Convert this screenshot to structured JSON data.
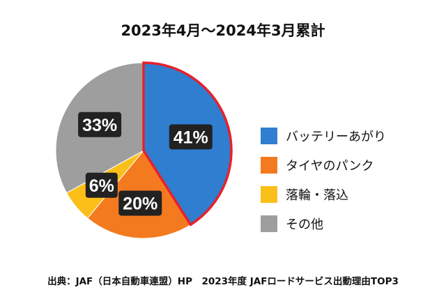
{
  "chart_data": {
    "type": "pie",
    "title": "2023年4月～2024年3月累計",
    "slices": [
      {
        "label": "バッテリーあがり",
        "value": 41,
        "display": "41%",
        "color": "#2f7ed0",
        "highlighted": true
      },
      {
        "label": "タイヤのパンク",
        "value": 20,
        "display": "20%",
        "color": "#f47a20",
        "highlighted": false
      },
      {
        "label": "落輪・落込",
        "value": 6,
        "display": "6%",
        "color": "#fbbf1a",
        "highlighted": false
      },
      {
        "label": "その他",
        "value": 33,
        "display": "33%",
        "color": "#9e9e9e",
        "highlighted": false
      }
    ],
    "highlight_color": "#e8202a",
    "legend_position": "right"
  },
  "source": "出典：JAF（日本自動車連盟）HP　2023年度 JAFロードサービス出動理由TOP3"
}
